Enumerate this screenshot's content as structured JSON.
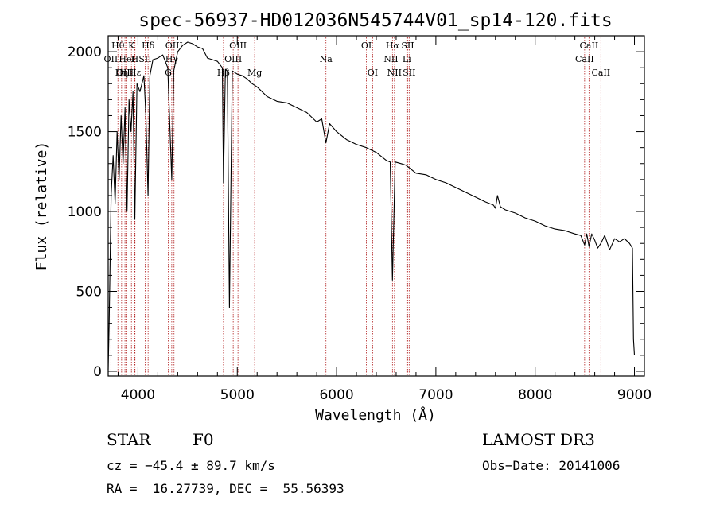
{
  "chart_data": {
    "type": "line",
    "title": "spec-56937-HD012036N545744V01_sp14-120.fits",
    "xlabel": "Wavelength (Å)",
    "ylabel": "Flux (relative)",
    "xlim": [
      3700,
      9100
    ],
    "ylim": [
      -30,
      2100
    ],
    "xticks": [
      4000,
      5000,
      6000,
      7000,
      8000,
      9000
    ],
    "yticks": [
      0,
      500,
      1000,
      1500,
      2000
    ],
    "series": [
      {
        "name": "flux",
        "x": [
          3700,
          3710,
          3730,
          3750,
          3770,
          3790,
          3810,
          3830,
          3850,
          3870,
          3890,
          3910,
          3930,
          3950,
          3968,
          3990,
          4020,
          4060,
          4080,
          4101,
          4120,
          4150,
          4200,
          4250,
          4300,
          4340,
          4360,
          4400,
          4450,
          4500,
          4550,
          4600,
          4650,
          4700,
          4750,
          4800,
          4850,
          4861,
          4880,
          4900,
          4921,
          4950,
          5000,
          5050,
          5100,
          5150,
          5200,
          5300,
          5400,
          5500,
          5600,
          5700,
          5800,
          5850,
          5893,
          5930,
          6000,
          6100,
          6200,
          6300,
          6400,
          6500,
          6540,
          6563,
          6590,
          6650,
          6700,
          6800,
          6900,
          7000,
          7100,
          7200,
          7300,
          7400,
          7500,
          7580,
          7600,
          7620,
          7650,
          7700,
          7800,
          7900,
          8000,
          8100,
          8200,
          8300,
          8400,
          8460,
          8498,
          8520,
          8542,
          8570,
          8600,
          8630,
          8662,
          8700,
          8750,
          8800,
          8850,
          8900,
          8950,
          8980,
          8990,
          9000
        ],
        "y": [
          10,
          300,
          1100,
          1350,
          1050,
          1500,
          1200,
          1600,
          1300,
          1650,
          1000,
          1700,
          1500,
          1750,
          950,
          1800,
          1750,
          1850,
          1600,
          1100,
          1850,
          1950,
          1960,
          1980,
          1900,
          1200,
          1880,
          2000,
          2040,
          2060,
          2050,
          2030,
          2020,
          1960,
          1950,
          1940,
          1900,
          1180,
          1890,
          1880,
          400,
          1880,
          1860,
          1850,
          1830,
          1800,
          1780,
          1720,
          1690,
          1680,
          1650,
          1620,
          1560,
          1580,
          1430,
          1550,
          1500,
          1450,
          1420,
          1400,
          1370,
          1320,
          1310,
          570,
          1310,
          1300,
          1290,
          1240,
          1230,
          1200,
          1180,
          1150,
          1120,
          1090,
          1060,
          1040,
          1020,
          1100,
          1030,
          1010,
          990,
          960,
          940,
          910,
          890,
          880,
          860,
          850,
          790,
          860,
          780,
          860,
          820,
          770,
          800,
          850,
          760,
          830,
          810,
          830,
          800,
          770,
          200,
          100
        ]
      }
    ],
    "line_labels": [
      {
        "label": "Hθ",
        "wavelength": 3798,
        "row": 0
      },
      {
        "label": "OII",
        "wavelength": 3727,
        "row": 1
      },
      {
        "label": "OIII",
        "wavelength": 3869,
        "row": 2
      },
      {
        "label": "K",
        "wavelength": 3934,
        "row": 0
      },
      {
        "label": "HeI",
        "wavelength": 3889,
        "row": 1
      },
      {
        "label": "Hη",
        "wavelength": 3835,
        "row": 2
      },
      {
        "label": "Hδ",
        "wavelength": 4102,
        "row": 0
      },
      {
        "label": "H",
        "wavelength": 3968,
        "row": 1
      },
      {
        "label": "Hε",
        "wavelength": 3970,
        "row": 2
      },
      {
        "label": "SII",
        "wavelength": 4072,
        "row": 1
      },
      {
        "label": "OIII",
        "wavelength": 4363,
        "row": 0
      },
      {
        "label": "Hγ",
        "wavelength": 4340,
        "row": 1
      },
      {
        "label": "G",
        "wavelength": 4305,
        "row": 2
      },
      {
        "label": "OIII",
        "wavelength": 5007,
        "row": 0
      },
      {
        "label": "OIII",
        "wavelength": 4959,
        "row": 1
      },
      {
        "label": "Hβ",
        "wavelength": 4861,
        "row": 2
      },
      {
        "label": "Mg",
        "wavelength": 5175,
        "row": 2
      },
      {
        "label": "Na",
        "wavelength": 5893,
        "row": 1
      },
      {
        "label": "OI",
        "wavelength": 6300,
        "row": 0
      },
      {
        "label": "OI",
        "wavelength": 6363,
        "row": 2
      },
      {
        "label": "Hα",
        "wavelength": 6563,
        "row": 0
      },
      {
        "label": "NII",
        "wavelength": 6548,
        "row": 1
      },
      {
        "label": "NII",
        "wavelength": 6583,
        "row": 2
      },
      {
        "label": "SII",
        "wavelength": 6716,
        "row": 0
      },
      {
        "label": "Li",
        "wavelength": 6707,
        "row": 1
      },
      {
        "label": "SII",
        "wavelength": 6731,
        "row": 2
      },
      {
        "label": "CaII",
        "wavelength": 8542,
        "row": 0
      },
      {
        "label": "CaII",
        "wavelength": 8498,
        "row": 1
      },
      {
        "label": "CaII",
        "wavelength": 8662,
        "row": 2
      }
    ]
  },
  "info": {
    "object_class": "STAR",
    "subclass": "F0",
    "survey": "LAMOST DR3",
    "cz": "cz = −45.4 ± 89.7 km/s",
    "obs_date": "Obs−Date: 20141006",
    "coords": "RA =  16.27739, DEC =  55.56393"
  },
  "colors": {
    "line": "#000000",
    "marker": "#b22222"
  }
}
